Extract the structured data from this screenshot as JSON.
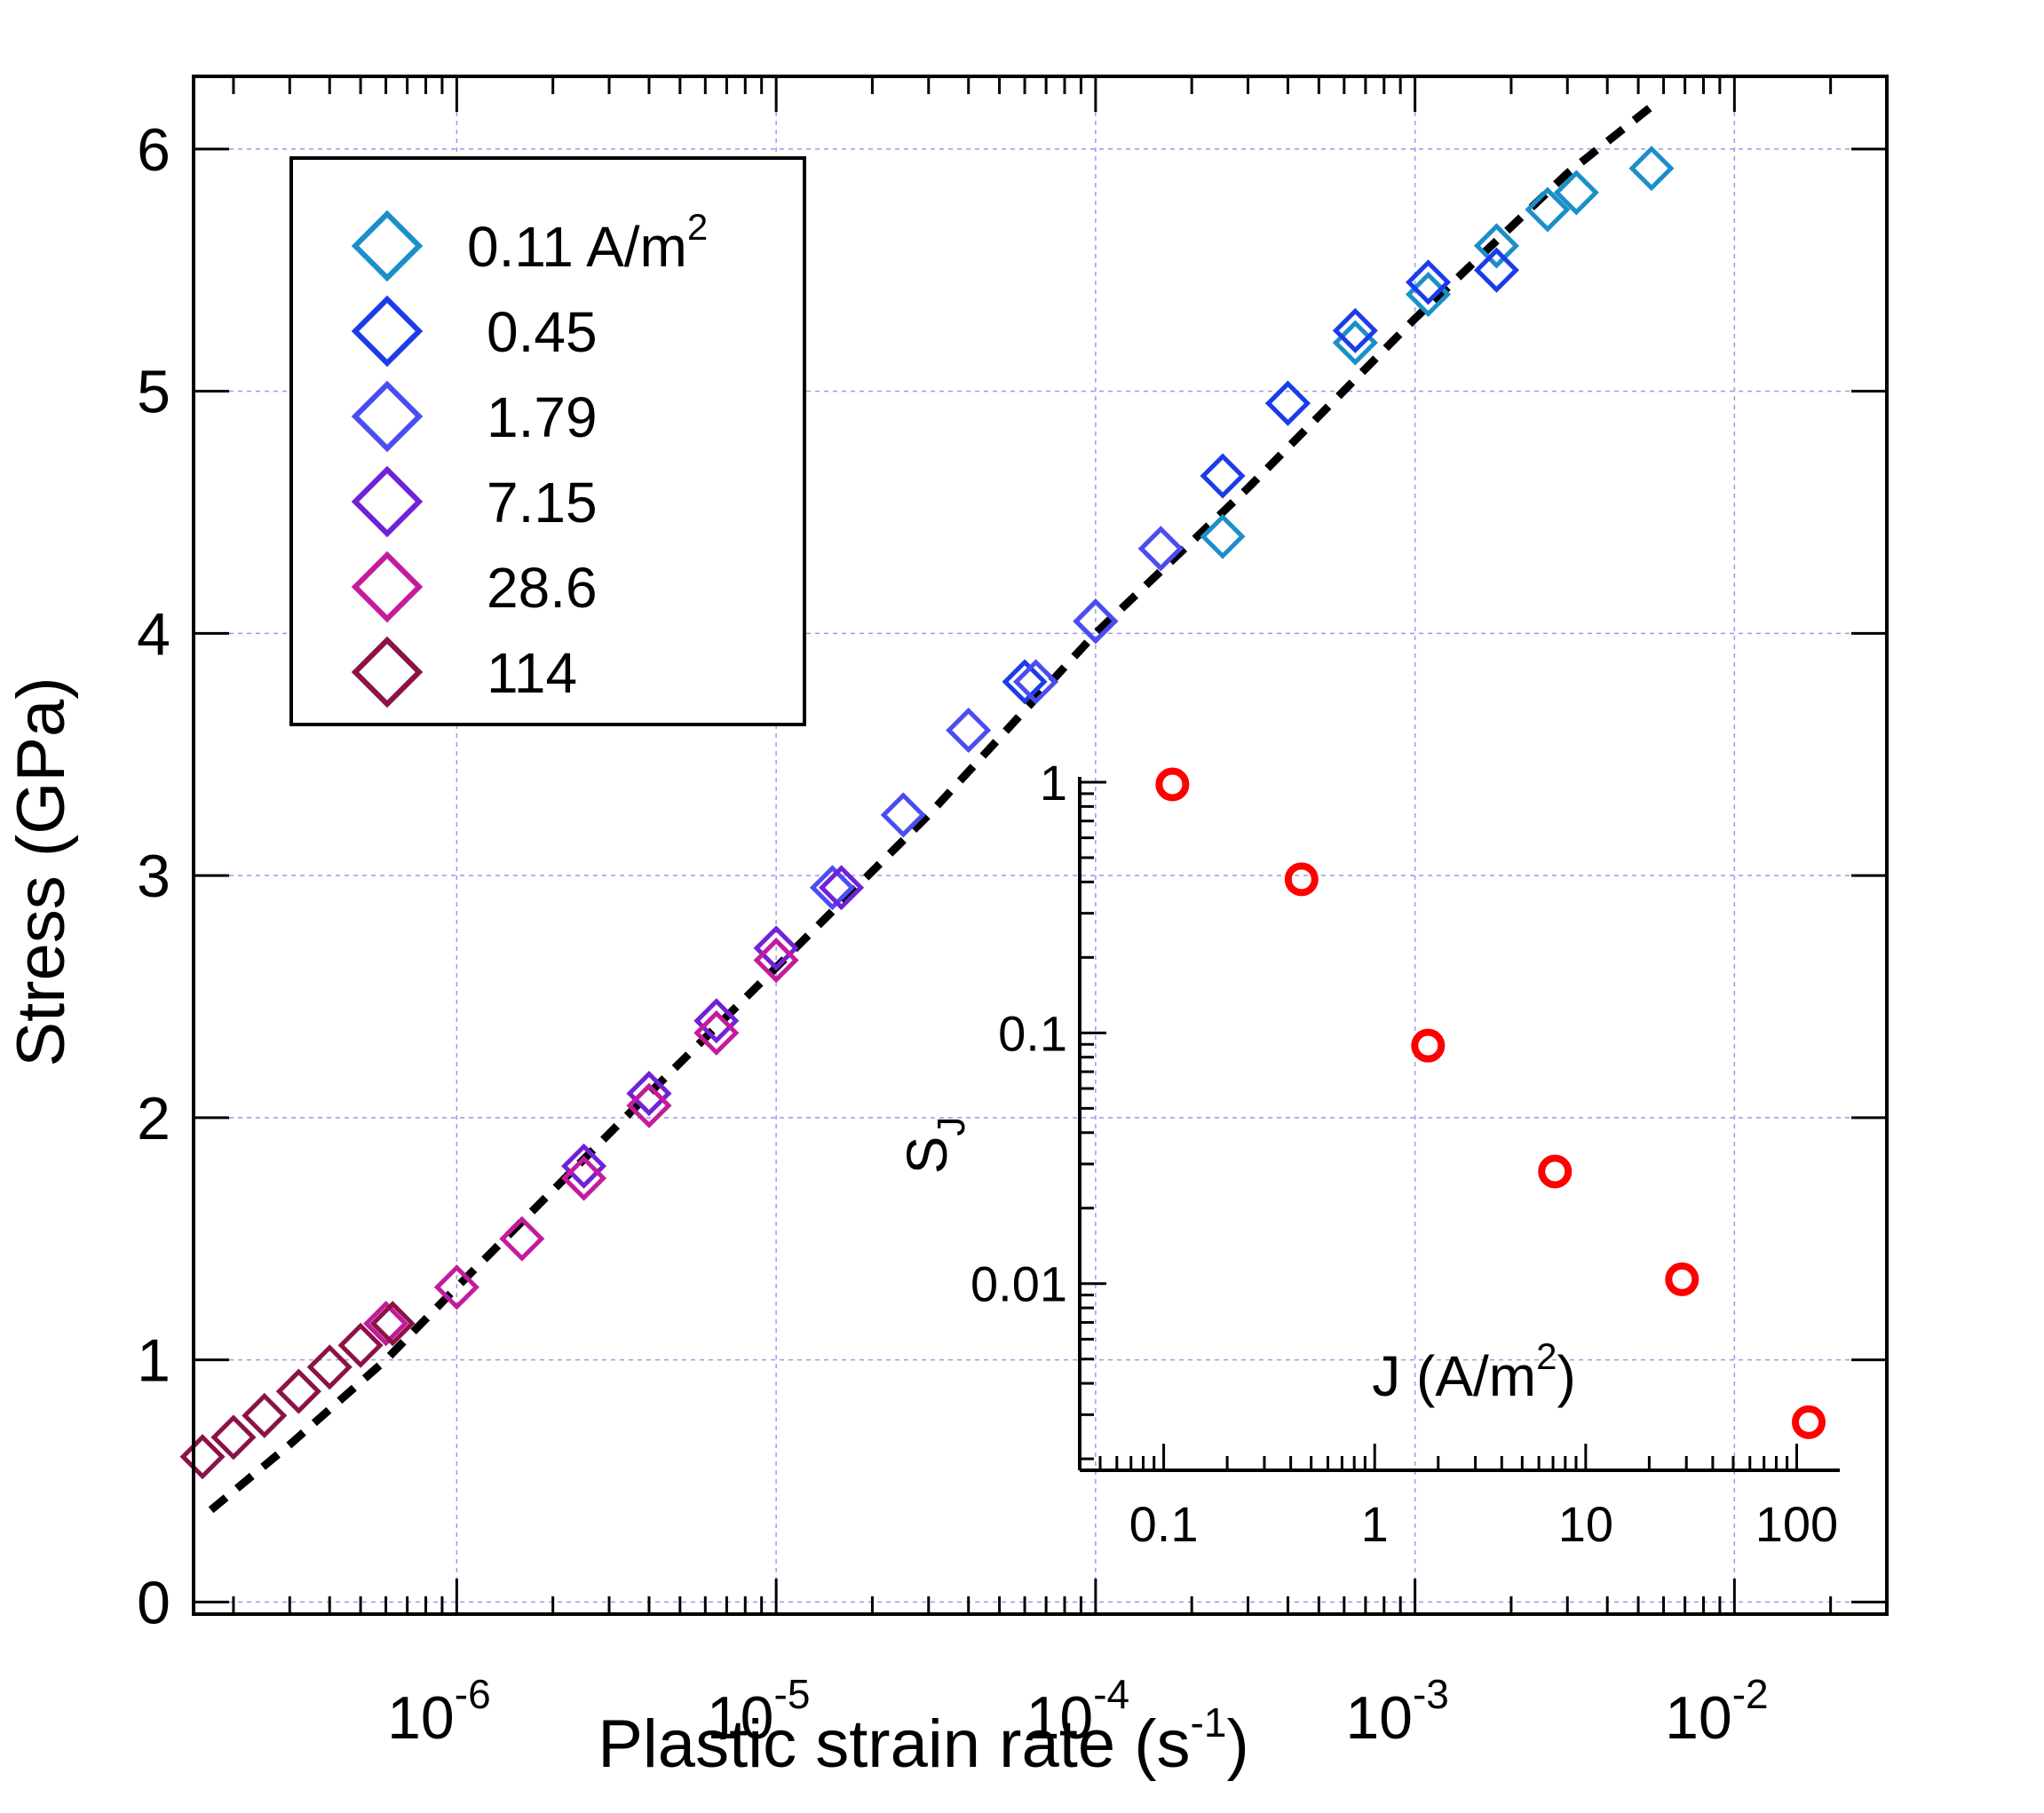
{
  "chart_data": [
    {
      "type": "scatter",
      "xscale": "log",
      "xlim": [
        1.5e-07,
        0.03
      ],
      "ylim": [
        -0.05,
        6.3
      ],
      "xlabel": "Plastic strain rate (s",
      "xlabel_sup": "-1",
      "xlabel_tail": ")",
      "ylabel": "Stress (GPa)",
      "grid": true,
      "x_ticks": [
        {
          "value": 1e-06,
          "base": "10",
          "exp": "-6"
        },
        {
          "value": 1e-05,
          "base": "10",
          "exp": "-5"
        },
        {
          "value": 0.0001,
          "base": "10",
          "exp": "-4"
        },
        {
          "value": 0.001,
          "base": "10",
          "exp": "-3"
        },
        {
          "value": 0.01,
          "base": "10",
          "exp": "-2"
        }
      ],
      "y_ticks": [
        {
          "value": 0,
          "label": "0"
        },
        {
          "value": 1,
          "label": "1"
        },
        {
          "value": 2,
          "label": "2"
        },
        {
          "value": 3,
          "label": "3"
        },
        {
          "value": 4,
          "label": "4"
        },
        {
          "value": 5,
          "label": "5"
        },
        {
          "value": 6,
          "label": "6"
        }
      ],
      "legend_position": "top-left",
      "series": [
        {
          "name": "0.11 A/m",
          "name_sup": "2",
          "color": "#1b8fc9",
          "marker": "open-diamond",
          "x": [
            0.00025,
            0.0004,
            0.00065,
            0.0011,
            0.0018,
            0.0026,
            0.0032,
            0.0055
          ],
          "y": [
            4.4,
            4.95,
            5.2,
            5.4,
            5.6,
            5.75,
            5.82,
            5.92
          ]
        },
        {
          "name": "0.45",
          "color": "#1c3ce8",
          "marker": "open-diamond",
          "x": [
            6e-05,
            0.0001,
            0.00016,
            0.00025,
            0.0004,
            0.00065,
            0.0011,
            0.0018
          ],
          "y": [
            3.8,
            4.05,
            4.35,
            4.65,
            4.95,
            5.25,
            5.45,
            5.5
          ]
        },
        {
          "name": "1.79",
          "color": "#4b4df0",
          "marker": "open-diamond",
          "x": [
            1.5e-05,
            2.5e-05,
            4e-05,
            6.5e-05,
            0.0001,
            0.00016
          ],
          "y": [
            2.95,
            3.25,
            3.6,
            3.8,
            4.05,
            4.35
          ]
        },
        {
          "name": "7.15",
          "color": "#7022d6",
          "marker": "open-diamond",
          "x": [
            2.5e-06,
            4e-06,
            6.5e-06,
            1e-05,
            1.6e-05
          ],
          "y": [
            1.8,
            2.1,
            2.4,
            2.7,
            2.95
          ]
        },
        {
          "name": "28.6",
          "color": "#c41b9c",
          "marker": "open-diamond",
          "x": [
            6e-07,
            1e-06,
            1.6e-06,
            2.5e-06,
            4e-06,
            6.5e-06,
            1e-05
          ],
          "y": [
            1.15,
            1.3,
            1.5,
            1.75,
            2.05,
            2.35,
            2.65
          ]
        },
        {
          "name": "114",
          "color": "#8c1247",
          "marker": "open-diamond",
          "x": [
            1.6e-07,
            2e-07,
            2.5e-07,
            3.2e-07,
            4e-07,
            5e-07,
            6.3e-07
          ],
          "y": [
            0.6,
            0.68,
            0.77,
            0.87,
            0.97,
            1.06,
            1.15
          ]
        }
      ],
      "fit": {
        "style": "dashed",
        "color": "#000000",
        "x": [
          1.7e-07,
          3e-07,
          6e-07,
          1e-06,
          2e-06,
          4e-06,
          1e-05,
          3e-05,
          0.0001,
          0.0003,
          0.001,
          0.003,
          0.0058
        ],
        "y": [
          0.38,
          0.65,
          1.0,
          1.3,
          1.7,
          2.1,
          2.62,
          3.25,
          4.0,
          4.6,
          5.3,
          5.9,
          6.2
        ]
      }
    },
    {
      "type": "scatter",
      "inset": true,
      "xscale": "log",
      "yscale": "log",
      "xlim": [
        0.04,
        160
      ],
      "ylim": [
        0.0018,
        1.05
      ],
      "xlabel": "J (A/m",
      "xlabel_sup": "2",
      "xlabel_tail": ")",
      "ylabel": "S",
      "ylabel_sub": "J",
      "x_ticks": [
        {
          "value": 0.1,
          "label": "0.1"
        },
        {
          "value": 1,
          "label": "1"
        },
        {
          "value": 10,
          "label": "10"
        },
        {
          "value": 100,
          "label": "100"
        }
      ],
      "y_ticks": [
        {
          "value": 1,
          "label": "1"
        },
        {
          "value": 0.1,
          "label": "0.1"
        },
        {
          "value": 0.01,
          "label": "0.01"
        }
      ],
      "series": [
        {
          "color": "#ff0000",
          "marker": "open-circle",
          "x": [
            0.11,
            0.45,
            1.79,
            7.15,
            28.6,
            114
          ],
          "y": [
            0.98,
            0.41,
            0.089,
            0.028,
            0.0104,
            0.0028
          ]
        }
      ]
    }
  ]
}
